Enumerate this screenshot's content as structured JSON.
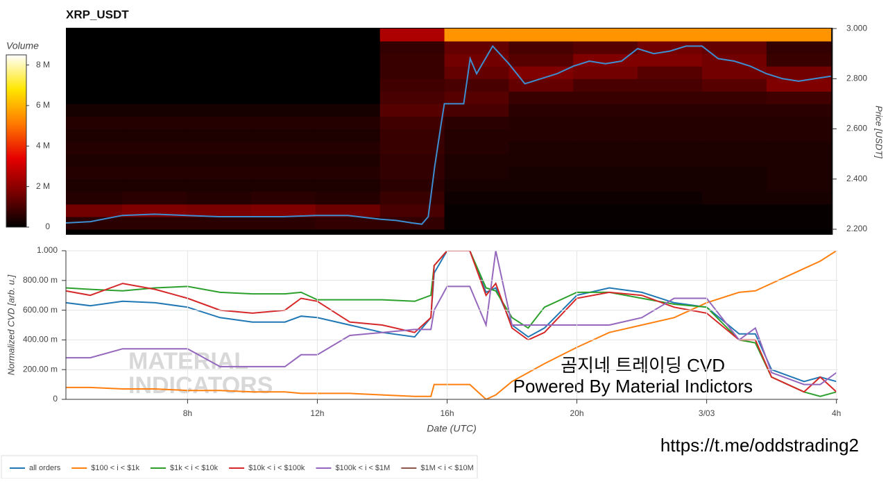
{
  "chart_data": [
    {
      "type": "heatmap",
      "title": "XRP_USDT",
      "y_label": "Price [USDT]",
      "colorbar": {
        "title": "Volume",
        "lim": [
          0,
          8.5
        ],
        "ticks": [
          {
            "value": 0,
            "label": "0"
          },
          {
            "value": 2,
            "label": "2 M"
          },
          {
            "value": 4,
            "label": "4 M"
          },
          {
            "value": 6,
            "label": "6 M"
          },
          {
            "value": 8,
            "label": "8 M"
          }
        ],
        "colorscale": [
          "#000000",
          "#7a0000",
          "#e60000",
          "#ff7a00",
          "#ffe600",
          "#ffffff"
        ]
      },
      "x_bins": [
        4,
        6,
        8,
        10,
        12,
        14,
        16,
        18,
        20,
        22,
        24,
        26,
        28
      ],
      "y_bins": [
        2.2,
        2.25,
        2.3,
        2.35,
        2.4,
        2.45,
        2.5,
        2.55,
        2.6,
        2.65,
        2.7,
        2.75,
        2.8,
        2.85,
        2.9,
        2.95,
        3.0
      ],
      "z": [
        [
          0.6,
          0.6,
          0.6,
          0.6,
          0.7,
          0.7,
          0.1,
          0.1,
          0.1,
          0.1,
          0.1,
          0.1
        ],
        [
          1.6,
          1.8,
          1.7,
          1.8,
          1.5,
          1.0,
          0.1,
          0.1,
          0.1,
          0.1,
          0.1,
          0.1
        ],
        [
          0.5,
          0.6,
          0.5,
          0.6,
          0.5,
          0.8,
          0.2,
          0.2,
          0.2,
          0.2,
          0.3,
          0.3
        ],
        [
          0.4,
          0.4,
          0.4,
          0.4,
          0.4,
          0.6,
          0.3,
          0.3,
          0.3,
          0.3,
          0.3,
          0.4
        ],
        [
          0.5,
          0.5,
          0.5,
          0.5,
          0.5,
          0.7,
          0.4,
          0.3,
          0.3,
          0.3,
          0.3,
          0.4
        ],
        [
          0.4,
          0.4,
          0.4,
          0.4,
          0.4,
          0.7,
          0.4,
          0.4,
          0.4,
          0.4,
          0.4,
          0.4
        ],
        [
          0.5,
          0.5,
          0.5,
          0.5,
          0.5,
          0.8,
          0.5,
          0.4,
          0.4,
          0.4,
          0.4,
          0.4
        ],
        [
          0.4,
          0.4,
          0.4,
          0.4,
          0.4,
          0.8,
          0.5,
          0.5,
          0.5,
          0.5,
          0.5,
          0.5
        ],
        [
          0.5,
          0.5,
          0.5,
          0.5,
          0.5,
          0.9,
          0.6,
          0.5,
          0.5,
          0.5,
          0.5,
          0.5
        ],
        [
          0.3,
          0.3,
          0.3,
          0.3,
          0.3,
          1.2,
          1.0,
          0.6,
          0.6,
          0.6,
          0.6,
          0.6
        ],
        [
          0,
          0,
          0,
          0,
          0,
          1.0,
          1.2,
          0.8,
          0.8,
          0.8,
          0.8,
          0.9
        ],
        [
          0,
          0,
          0,
          0,
          0,
          0.9,
          1.0,
          1.4,
          1.0,
          1.0,
          1.2,
          1.8
        ],
        [
          0,
          0,
          0,
          0,
          0,
          0.8,
          1.4,
          1.8,
          1.6,
          1.2,
          1.6,
          1.6
        ],
        [
          0,
          0,
          0,
          0,
          0,
          0.8,
          1.6,
          1.2,
          1.8,
          1.8,
          1.6,
          0.8
        ],
        [
          0,
          0,
          0,
          0,
          0,
          0.7,
          1.4,
          1.0,
          1.2,
          1.6,
          1.4,
          0.7
        ],
        [
          0,
          0,
          0,
          0,
          0,
          2.5,
          5.5,
          5.5,
          5.5,
          5.5,
          5.5,
          5.5
        ]
      ],
      "price": {
        "color": "#3d8fd1",
        "x": [
          4.25,
          5,
          6,
          7,
          8,
          9,
          10,
          11,
          12,
          13,
          14,
          14.5,
          15,
          15.3,
          15.5,
          15.7,
          15.9,
          16,
          16.5,
          16.6,
          16.8,
          17,
          17.5,
          18,
          18.5,
          19,
          19.5,
          20,
          20.5,
          21,
          21.5,
          22,
          22.5,
          23,
          23.5,
          24,
          24.5,
          25,
          25.5,
          26,
          26.5,
          27,
          27.5,
          28
        ],
        "values": [
          2.225,
          2.23,
          2.255,
          2.26,
          2.255,
          2.25,
          2.25,
          2.25,
          2.255,
          2.255,
          2.24,
          2.235,
          2.225,
          2.22,
          2.25,
          2.45,
          2.62,
          2.7,
          2.7,
          2.7,
          2.88,
          2.82,
          2.93,
          2.86,
          2.78,
          2.8,
          2.82,
          2.85,
          2.87,
          2.86,
          2.87,
          2.92,
          2.9,
          2.91,
          2.93,
          2.93,
          2.88,
          2.87,
          2.85,
          2.82,
          2.8,
          2.79,
          2.8,
          2.81
        ]
      },
      "xlim": [
        4.25,
        28.05
      ],
      "ylim": [
        2.178,
        3.003
      ],
      "yticks": [
        {
          "value": 2.2,
          "label": "2.200"
        },
        {
          "value": 2.4,
          "label": "2.400"
        },
        {
          "value": 2.6,
          "label": "2.600"
        },
        {
          "value": 2.8,
          "label": "2.800"
        },
        {
          "value": 3.0,
          "label": "3.000"
        }
      ]
    },
    {
      "type": "line",
      "y_label": "Normalized CVD [arb. u.]",
      "x_label": "Date (UTC)",
      "annotations": [
        "곰지네 트레이딩 CVD",
        "Powered By Material Indictors"
      ],
      "watermark": [
        "MATERIAL",
        "INDICATORS"
      ],
      "footer": "https://t.me/oddstrading2",
      "x": [
        4.25,
        5,
        6,
        7,
        8,
        9,
        10,
        11,
        11.5,
        12,
        13,
        14,
        15,
        15.5,
        15.6,
        16,
        16.7,
        17.2,
        17.5,
        18,
        18.5,
        19,
        20,
        21,
        22,
        23,
        24,
        25,
        25.5,
        26,
        27,
        27.5,
        28
      ],
      "series": [
        {
          "name": "all orders",
          "color": "#1f77b4",
          "values": [
            0.65,
            0.63,
            0.66,
            0.65,
            0.62,
            0.55,
            0.52,
            0.52,
            0.56,
            0.55,
            0.5,
            0.45,
            0.42,
            0.55,
            0.85,
            1.0,
            1.0,
            0.72,
            0.75,
            0.5,
            0.42,
            0.48,
            0.7,
            0.75,
            0.72,
            0.65,
            0.62,
            0.44,
            0.44,
            0.2,
            0.12,
            0.15,
            0.12
          ]
        },
        {
          "name": "$100 < i < $1k",
          "color": "#ff7f0e",
          "values": [
            0.08,
            0.08,
            0.07,
            0.07,
            0.06,
            0.06,
            0.05,
            0.05,
            0.04,
            0.04,
            0.04,
            0.03,
            0.02,
            0.02,
            0.1,
            0.1,
            0.1,
            0.0,
            0.03,
            0.12,
            0.18,
            0.24,
            0.35,
            0.45,
            0.5,
            0.55,
            0.65,
            0.72,
            0.73,
            0.78,
            0.88,
            0.93,
            1.0
          ]
        },
        {
          "name": "$1k < i < $10k",
          "color": "#2ca02c",
          "values": [
            0.75,
            0.74,
            0.73,
            0.75,
            0.76,
            0.72,
            0.71,
            0.71,
            0.72,
            0.67,
            0.67,
            0.67,
            0.66,
            0.7,
            0.9,
            1.0,
            1.0,
            0.75,
            0.73,
            0.55,
            0.48,
            0.62,
            0.72,
            0.72,
            0.68,
            0.64,
            0.62,
            0.4,
            0.38,
            0.15,
            0.05,
            0.02,
            0.05
          ]
        },
        {
          "name": "$10k < i < $100k",
          "color": "#d62728",
          "values": [
            0.73,
            0.7,
            0.78,
            0.74,
            0.68,
            0.6,
            0.58,
            0.6,
            0.68,
            0.66,
            0.52,
            0.5,
            0.45,
            0.55,
            0.9,
            1.0,
            1.0,
            0.7,
            0.78,
            0.48,
            0.4,
            0.45,
            0.68,
            0.72,
            0.7,
            0.62,
            0.58,
            0.4,
            0.4,
            0.15,
            0.05,
            0.15,
            0.05
          ]
        },
        {
          "name": "$100k < i < $1M",
          "color": "#9467bd",
          "values": [
            0.28,
            0.28,
            0.34,
            0.34,
            0.34,
            0.22,
            0.22,
            0.22,
            0.3,
            0.3,
            0.43,
            0.45,
            0.47,
            0.47,
            0.6,
            0.76,
            0.76,
            0.5,
            1.0,
            0.5,
            0.5,
            0.5,
            0.5,
            0.5,
            0.55,
            0.68,
            0.68,
            0.4,
            0.48,
            0.18,
            0.1,
            0.1,
            0.18
          ]
        },
        {
          "name": "$1M < i < $10M",
          "color": "#8c564b",
          "values": [
            null,
            null,
            null,
            null,
            null,
            null,
            null,
            null,
            null,
            null,
            null,
            null,
            null,
            null,
            null,
            null,
            null,
            null,
            null,
            null,
            null,
            null,
            null,
            null,
            null,
            null,
            null,
            null,
            null,
            null,
            null,
            null,
            null
          ]
        }
      ],
      "xlim": [
        4.25,
        28.05
      ],
      "ylim": [
        0,
        1.0
      ],
      "xticks": [
        {
          "value": 8,
          "label": "8h"
        },
        {
          "value": 12,
          "label": "12h"
        },
        {
          "value": 16,
          "label": "16h"
        },
        {
          "value": 20,
          "label": "20h"
        },
        {
          "value": 24,
          "label": "3/03"
        },
        {
          "value": 28,
          "label": "4h"
        }
      ],
      "yticks": [
        0,
        {
          "value": 0.2,
          "label": "200.00 m"
        },
        {
          "value": 0.4,
          "label": "400.00 m"
        },
        {
          "value": 0.6,
          "label": "600.00 m"
        },
        {
          "value": 0.8,
          "label": "800.00 m"
        },
        {
          "value": 1.0,
          "label": "1.000"
        }
      ],
      "grid": true,
      "legend": "bottom-left"
    }
  ]
}
